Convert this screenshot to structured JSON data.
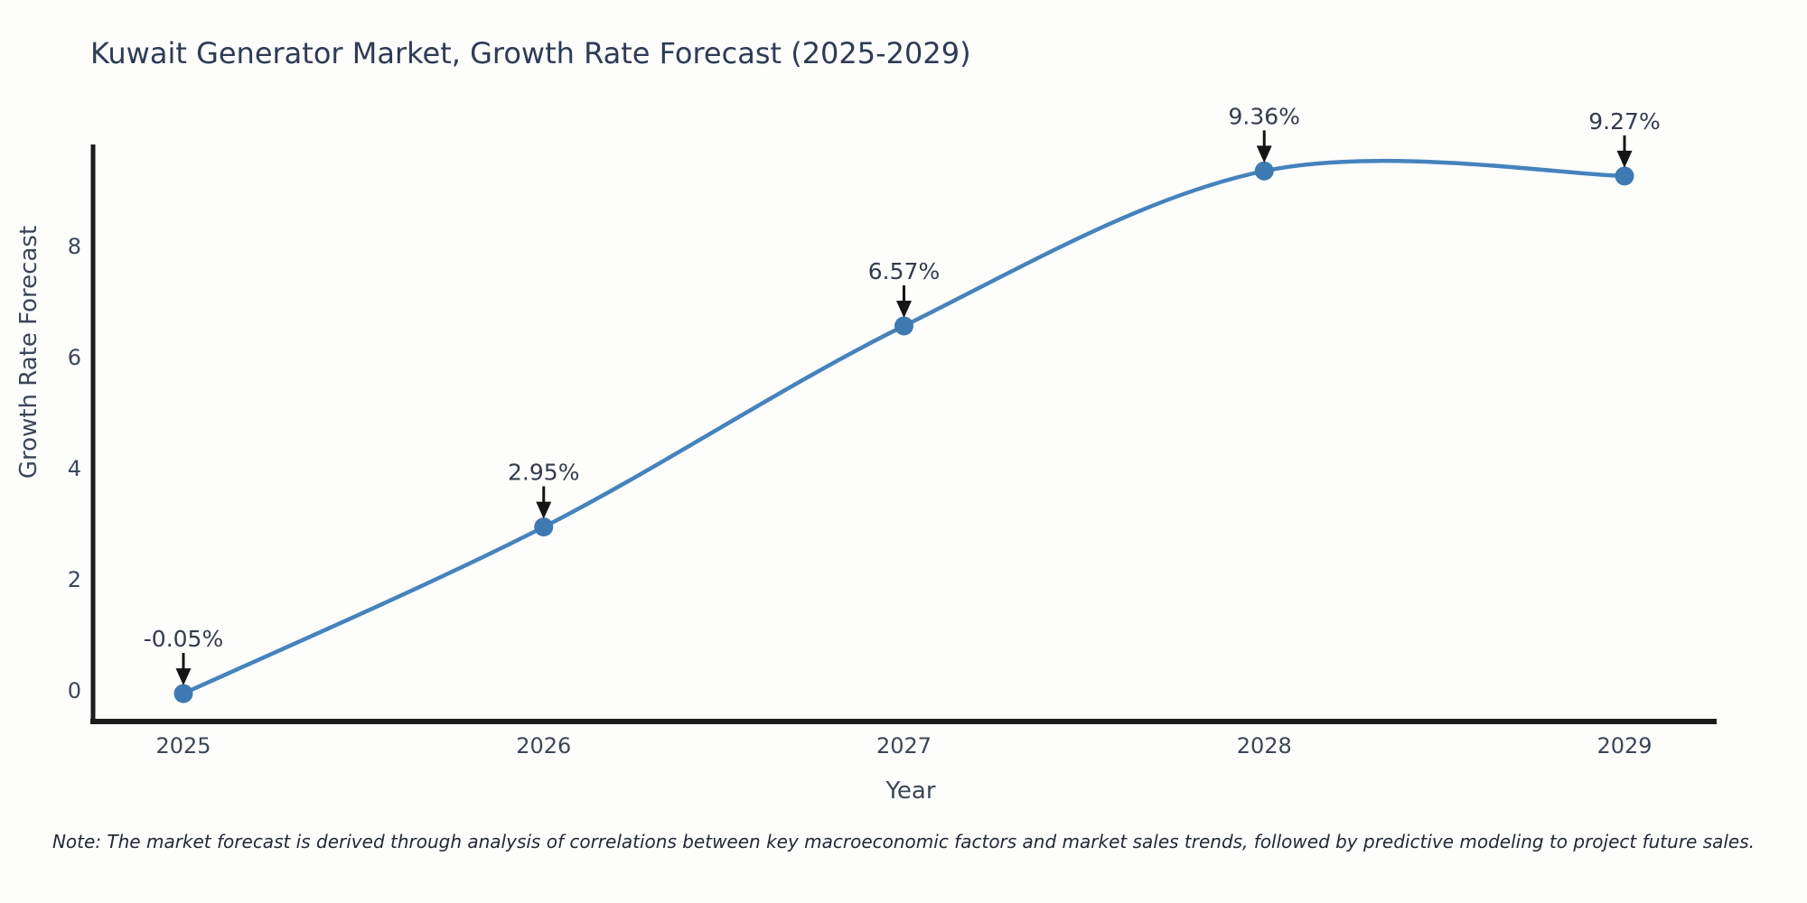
{
  "chart_data": {
    "type": "line",
    "title": "Kuwait Generator Market, Growth Rate Forecast (2025-2029)",
    "xlabel": "Year",
    "ylabel": "Growth Rate Forecast",
    "x": [
      2025,
      2026,
      2027,
      2028,
      2029
    ],
    "series": [
      {
        "name": "Growth Rate Forecast",
        "values": [
          -0.05,
          2.95,
          6.57,
          9.36,
          9.27
        ]
      }
    ],
    "point_labels": [
      "-0.05%",
      "2.95%",
      "6.57%",
      "9.36%",
      "9.27%"
    ],
    "xticks": [
      "2025",
      "2026",
      "2027",
      "2028",
      "2029"
    ],
    "yticks": [
      0,
      2,
      4,
      6,
      8
    ],
    "xlim": [
      2024.75,
      2029.26
    ],
    "ylim": [
      -0.54,
      9.84
    ],
    "grid": false,
    "legend_position": "none",
    "line_shape": "spline",
    "line_color": "#4583bd",
    "marker_color": "#3d7ab1",
    "axis_color": "#1c1c1c",
    "annotation_arrow_color": "#151515"
  },
  "note": "Note: The market forecast is derived through analysis of correlations between key macroeconomic factors and market sales trends, followed by predictive modeling to project future sales."
}
